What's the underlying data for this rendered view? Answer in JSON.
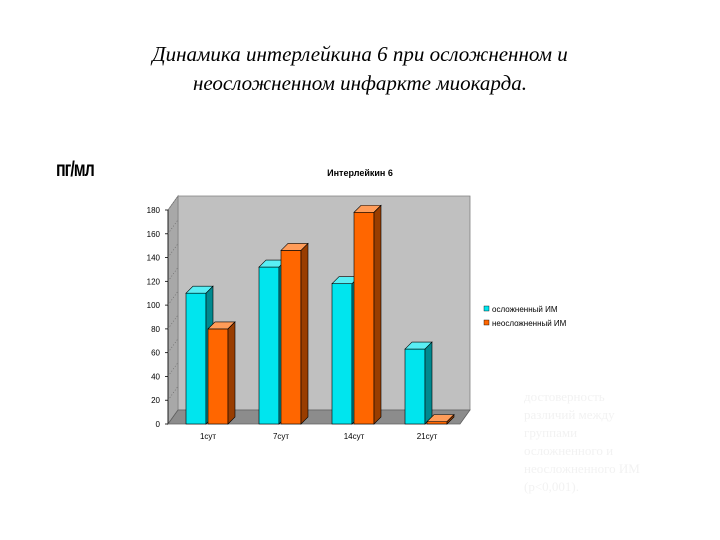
{
  "slide": {
    "title_line1": "Динамика интерлейкина 6 при осложненном и",
    "title_line2": "неосложненном инфаркте миокарда.",
    "unit_label": "пг/мл",
    "note_lines": [
      "достоверность",
      "различий между",
      "группами",
      "осложненного и",
      "неосложненного ИМ",
      "(р<0,001)."
    ]
  },
  "chart_data": {
    "type": "bar",
    "title": "Интерлейкин 6",
    "xlabel": "",
    "ylabel": "пг/мл",
    "categories": [
      "1сут",
      "7сут",
      "14сут",
      "21сут"
    ],
    "series": [
      {
        "name": "осложненный ИМ",
        "values": [
          110,
          132,
          118,
          63
        ],
        "color": "#00e5ee"
      },
      {
        "name": "неосложненный ИМ",
        "values": [
          80,
          146,
          178,
          2
        ],
        "color": "#ff6600"
      }
    ],
    "ylim": [
      0,
      180
    ],
    "yticks": [
      0,
      20,
      40,
      60,
      80,
      100,
      120,
      140,
      160,
      180
    ],
    "grid": false,
    "legend": "right",
    "three_d": true
  }
}
